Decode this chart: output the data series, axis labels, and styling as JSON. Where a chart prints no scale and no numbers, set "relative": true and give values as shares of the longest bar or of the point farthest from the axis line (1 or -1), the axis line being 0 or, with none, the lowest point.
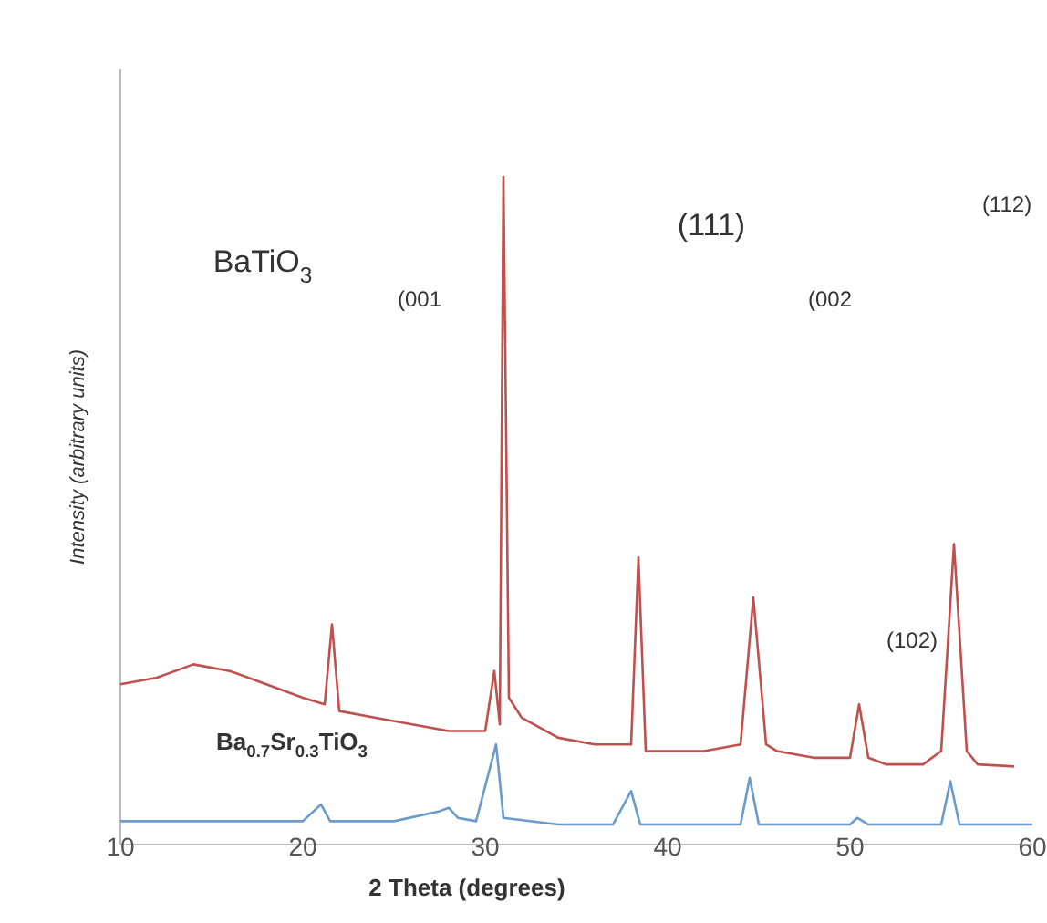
{
  "chart_data": {
    "type": "line",
    "relative": true,
    "xlabel": "2 Theta (degrees)",
    "ylabel": "Intensity (arbitrary units)",
    "xlim": [
      10,
      60
    ],
    "xticks": [
      10,
      20,
      30,
      40,
      50,
      60
    ],
    "grid": false,
    "marker": "none",
    "line_style": "solid",
    "series": [
      {
        "color": "#c0504d",
        "x": [
          10,
          12,
          14,
          16,
          18,
          20,
          21.2,
          21.6,
          22,
          24,
          26,
          28,
          30,
          30.5,
          30.8,
          31,
          31.3,
          32,
          34,
          36,
          38,
          38.4,
          38.8,
          40,
          42,
          44,
          44.7,
          45.4,
          46,
          48,
          50,
          50.5,
          51,
          52,
          54,
          55,
          55.7,
          56.4,
          57,
          59
        ],
        "values": [
          0.24,
          0.25,
          0.27,
          0.26,
          0.24,
          0.22,
          0.21,
          0.33,
          0.2,
          0.19,
          0.18,
          0.17,
          0.17,
          0.26,
          0.18,
          1.0,
          0.22,
          0.19,
          0.16,
          0.15,
          0.15,
          0.43,
          0.14,
          0.14,
          0.14,
          0.15,
          0.37,
          0.15,
          0.14,
          0.13,
          0.13,
          0.21,
          0.13,
          0.12,
          0.12,
          0.14,
          0.45,
          0.14,
          0.12,
          0.117
        ]
      },
      {
        "color": "#6b9bc8",
        "x": [
          10,
          15,
          20,
          21,
          21.5,
          25,
          27.5,
          28,
          28.5,
          29.5,
          30.6,
          31,
          34,
          37,
          38,
          38.5,
          44,
          44.5,
          45,
          50,
          50.4,
          51,
          55,
          55.5,
          56,
          60
        ],
        "values": [
          0.035,
          0.035,
          0.035,
          0.06,
          0.035,
          0.035,
          0.05,
          0.055,
          0.04,
          0.035,
          0.15,
          0.04,
          0.03,
          0.03,
          0.08,
          0.03,
          0.03,
          0.1,
          0.03,
          0.03,
          0.04,
          0.03,
          0.03,
          0.095,
          0.03,
          0.03
        ]
      }
    ],
    "annotations": [
      "BaTiO$_{3}$",
      "(001",
      "(111)",
      "(002",
      "(112)",
      "(102)",
      "Ba$_{0.7}$Sr$_{0.3}$TiO$_{3}$"
    ]
  }
}
